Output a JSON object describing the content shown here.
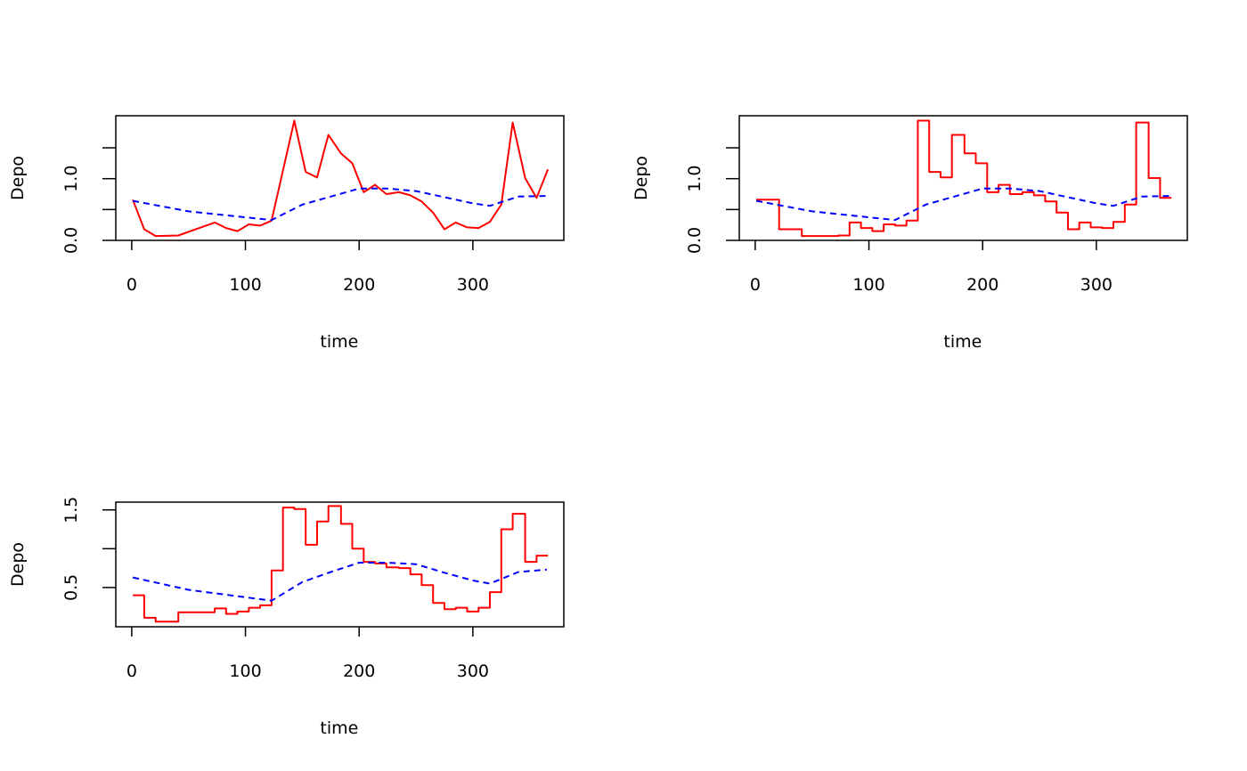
{
  "colors": {
    "observed": "#ff0000",
    "smooth": "#0000ff",
    "axis": "#000000"
  },
  "chart_data": [
    {
      "type": "line",
      "xlabel": "time",
      "ylabel": "Depo",
      "xlim": [
        -14,
        380
      ],
      "ylim": [
        0,
        2.02
      ],
      "xticks": [
        0,
        100,
        200,
        300
      ],
      "xtick_labels": [
        "0",
        "100",
        "200",
        "300"
      ],
      "yticks": [
        0,
        0.5,
        1.0,
        1.5
      ],
      "ytick_labels": [
        "0.0",
        "",
        "1.0",
        ""
      ],
      "grid": false,
      "series": [
        {
          "style": "solid",
          "color": "#ff0000",
          "step": false,
          "x": [
            1,
            11,
            21,
            41,
            73,
            83,
            93,
            103,
            113,
            123,
            143,
            153,
            163,
            173,
            184,
            194,
            204,
            214,
            224,
            235,
            245,
            255,
            265,
            275,
            285,
            295,
            305,
            315,
            325,
            335,
            346,
            356,
            366
          ],
          "y": [
            0.66,
            0.18,
            0.07,
            0.08,
            0.29,
            0.2,
            0.15,
            0.26,
            0.24,
            0.32,
            1.94,
            1.11,
            1.02,
            1.71,
            1.41,
            1.25,
            0.78,
            0.9,
            0.75,
            0.78,
            0.73,
            0.63,
            0.45,
            0.18,
            0.29,
            0.21,
            0.2,
            0.3,
            0.58,
            1.91,
            1.01,
            0.69,
            1.15
          ]
        },
        {
          "style": "dashed",
          "color": "#0000ff",
          "step": false,
          "x": [
            1,
            50,
            123,
            150,
            175,
            200,
            225,
            250,
            275,
            300,
            315,
            340,
            365
          ],
          "y": [
            0.64,
            0.47,
            0.33,
            0.58,
            0.71,
            0.84,
            0.84,
            0.8,
            0.7,
            0.6,
            0.56,
            0.71,
            0.72
          ]
        }
      ]
    },
    {
      "type": "line",
      "xlabel": "time",
      "ylabel": "Depo",
      "xlim": [
        -14,
        380
      ],
      "ylim": [
        0,
        2.02
      ],
      "xticks": [
        0,
        100,
        200,
        300
      ],
      "xtick_labels": [
        "0",
        "100",
        "200",
        "300"
      ],
      "yticks": [
        0,
        0.5,
        1.0,
        1.5
      ],
      "ytick_labels": [
        "0.0",
        "",
        "1.0",
        ""
      ],
      "grid": false,
      "series": [
        {
          "style": "solid",
          "color": "#ff0000",
          "step": true,
          "x": [
            1,
            11,
            21,
            41,
            73,
            83,
            93,
            103,
            113,
            123,
            133,
            143,
            153,
            163,
            173,
            184,
            194,
            204,
            214,
            224,
            235,
            245,
            255,
            265,
            275,
            285,
            295,
            305,
            315,
            325,
            335,
            346,
            356,
            366
          ],
          "y": [
            0.66,
            0.66,
            0.18,
            0.07,
            0.08,
            0.29,
            0.2,
            0.15,
            0.26,
            0.24,
            0.32,
            1.94,
            1.11,
            1.02,
            1.71,
            1.41,
            1.25,
            0.78,
            0.9,
            0.75,
            0.78,
            0.73,
            0.63,
            0.45,
            0.18,
            0.29,
            0.21,
            0.2,
            0.3,
            0.58,
            1.91,
            1.01,
            0.69,
            0.69
          ]
        },
        {
          "style": "dashed",
          "color": "#0000ff",
          "step": false,
          "x": [
            1,
            50,
            123,
            150,
            175,
            200,
            225,
            250,
            275,
            300,
            315,
            340,
            365
          ],
          "y": [
            0.64,
            0.47,
            0.33,
            0.58,
            0.71,
            0.84,
            0.84,
            0.8,
            0.7,
            0.6,
            0.56,
            0.71,
            0.72
          ]
        }
      ]
    },
    {
      "type": "line",
      "xlabel": "time",
      "ylabel": "Depo",
      "xlim": [
        -14,
        380
      ],
      "ylim": [
        -0.006,
        1.6
      ],
      "xticks": [
        0,
        100,
        200,
        300
      ],
      "xtick_labels": [
        "0",
        "100",
        "200",
        "300"
      ],
      "yticks": [
        0.5,
        1.0,
        1.5
      ],
      "ytick_labels": [
        "0.5",
        "",
        "1.5"
      ],
      "grid": false,
      "series": [
        {
          "style": "solid",
          "color": "#ff0000",
          "step": true,
          "x": [
            1,
            11,
            21,
            41,
            73,
            83,
            93,
            103,
            113,
            123,
            133,
            143,
            153,
            163,
            173,
            184,
            194,
            204,
            214,
            224,
            235,
            245,
            255,
            265,
            275,
            285,
            295,
            305,
            315,
            325,
            335,
            346,
            356,
            366
          ],
          "y": [
            0.4,
            0.11,
            0.06,
            0.18,
            0.23,
            0.16,
            0.19,
            0.24,
            0.27,
            0.72,
            1.53,
            1.51,
            1.05,
            1.35,
            1.55,
            1.32,
            1.0,
            0.83,
            0.81,
            0.76,
            0.75,
            0.67,
            0.53,
            0.3,
            0.22,
            0.24,
            0.19,
            0.24,
            0.44,
            1.25,
            1.45,
            0.83,
            0.91,
            0.91
          ]
        },
        {
          "style": "dashed",
          "color": "#0000ff",
          "step": false,
          "x": [
            1,
            50,
            123,
            150,
            175,
            200,
            225,
            250,
            275,
            300,
            315,
            340,
            365
          ],
          "y": [
            0.63,
            0.47,
            0.33,
            0.57,
            0.7,
            0.82,
            0.82,
            0.8,
            0.69,
            0.59,
            0.55,
            0.7,
            0.73
          ]
        }
      ]
    }
  ]
}
